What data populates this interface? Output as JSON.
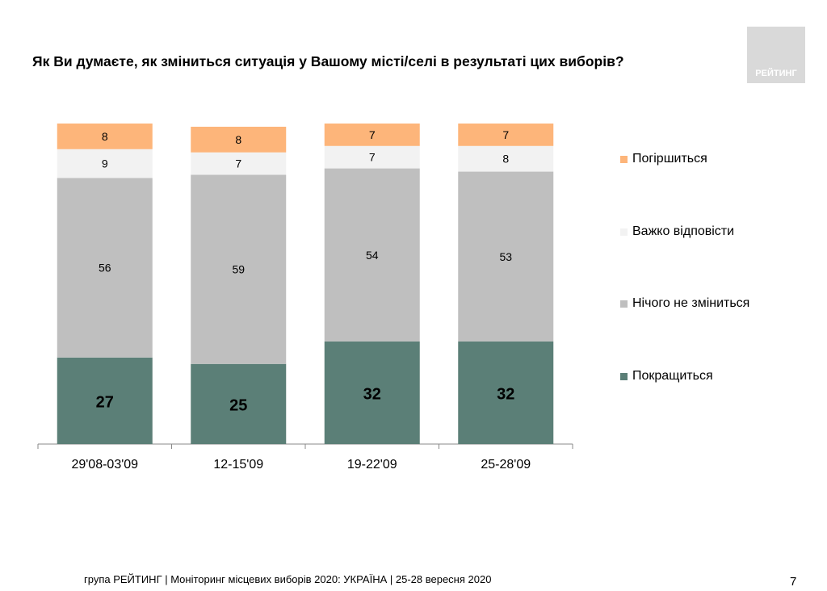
{
  "title": "Як Ви думаєте, як зміниться ситуація у Вашому місті/селі в результаті цих виборів?",
  "logo_text": "РЕЙТИНГ",
  "footer": "група РЕЙТИНГ | Моніторинг місцевих виборів 2020: УКРАЇНА | 25-28 вересня 2020",
  "page_number": "7",
  "chart_data": {
    "type": "bar",
    "stacked": true,
    "categories": [
      "29'08-03'09",
      "12-15'09",
      "19-22'09",
      "25-28'09"
    ],
    "series": [
      {
        "name": "Покращиться",
        "values": [
          27,
          25,
          32,
          32
        ],
        "color": "#5B7F77"
      },
      {
        "name": "Нічого не зміниться",
        "values": [
          56,
          59,
          54,
          53
        ],
        "color": "#BFBFBF"
      },
      {
        "name": "Важко відповісти",
        "values": [
          9,
          7,
          7,
          8
        ],
        "color": "#F2F2F2"
      },
      {
        "name": "Погіршиться",
        "values": [
          8,
          8,
          7,
          7
        ],
        "color": "#FDB57A"
      }
    ],
    "ylim": [
      0,
      100
    ],
    "grid": false,
    "legend_placement": "right"
  }
}
